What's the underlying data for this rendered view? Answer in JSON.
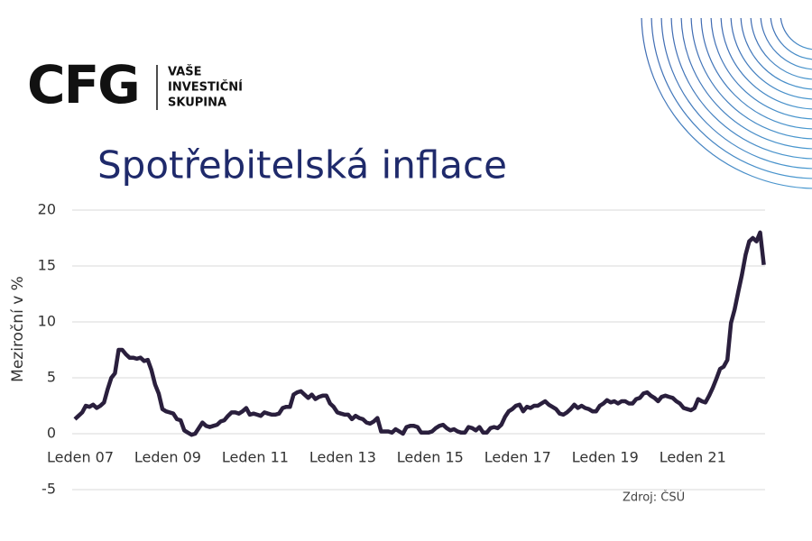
{
  "logo": {
    "mark": "CFG",
    "lines": [
      "VAŠE",
      "INVESTIČNÍ",
      "SKUPINA"
    ]
  },
  "chart_data": {
    "type": "line",
    "title": "Spotřebitelská inflace",
    "y_label": "Meziroční v %",
    "source": "Zdroj: ČSÚ",
    "categories": [
      "Leden 07",
      null,
      null,
      null,
      null,
      null,
      null,
      null,
      null,
      null,
      null,
      null,
      null,
      null,
      null,
      null,
      null,
      null,
      null,
      null,
      null,
      null,
      null,
      null,
      "Leden 09",
      null,
      null,
      null,
      null,
      null,
      null,
      null,
      null,
      null,
      null,
      null,
      null,
      null,
      null,
      null,
      null,
      null,
      null,
      null,
      null,
      null,
      null,
      null,
      "Leden 11",
      null,
      null,
      null,
      null,
      null,
      null,
      null,
      null,
      null,
      null,
      null,
      null,
      null,
      null,
      null,
      null,
      null,
      null,
      null,
      null,
      null,
      null,
      null,
      "Leden 13",
      null,
      null,
      null,
      null,
      null,
      null,
      null,
      null,
      null,
      null,
      null,
      null,
      null,
      null,
      null,
      null,
      null,
      null,
      null,
      null,
      null,
      null,
      null,
      "Leden 15",
      null,
      null,
      null,
      null,
      null,
      null,
      null,
      null,
      null,
      null,
      null,
      null,
      null,
      null,
      null,
      null,
      null,
      null,
      null,
      null,
      null,
      null,
      null,
      "Leden 17",
      null,
      null,
      null,
      null,
      null,
      null,
      null,
      null,
      null,
      null,
      null,
      null,
      null,
      null,
      null,
      null,
      null,
      null,
      null,
      null,
      null,
      null,
      null,
      "Leden 19",
      null,
      null,
      null,
      null,
      null,
      null,
      null,
      null,
      null,
      null,
      null,
      null,
      null,
      null,
      null,
      null,
      null,
      null,
      null,
      null,
      null,
      null,
      null,
      "Leden 21",
      null,
      null,
      null,
      null,
      null,
      null,
      null,
      null,
      null,
      null,
      null,
      null,
      null,
      null,
      null,
      null,
      null,
      null,
      null,
      null,
      null
    ],
    "series": [
      {
        "name": "Inflace",
        "color": "#2a1f3d",
        "values": [
          1.3,
          1.6,
          1.9,
          2.5,
          2.4,
          2.6,
          2.3,
          2.5,
          2.8,
          4.0,
          5.0,
          5.4,
          7.5,
          7.5,
          7.1,
          6.8,
          6.8,
          6.7,
          6.8,
          6.5,
          6.6,
          5.7,
          4.4,
          3.6,
          2.2,
          2.0,
          1.9,
          1.8,
          1.3,
          1.2,
          0.3,
          0.1,
          -0.1,
          0.0,
          0.5,
          1.0,
          0.7,
          0.6,
          0.7,
          0.8,
          1.1,
          1.2,
          1.6,
          1.9,
          1.9,
          1.8,
          2.0,
          2.3,
          1.7,
          1.8,
          1.7,
          1.6,
          1.9,
          1.8,
          1.7,
          1.7,
          1.8,
          2.3,
          2.4,
          2.4,
          3.5,
          3.7,
          3.8,
          3.5,
          3.2,
          3.5,
          3.1,
          3.3,
          3.4,
          3.4,
          2.7,
          2.4,
          1.9,
          1.8,
          1.7,
          1.7,
          1.3,
          1.6,
          1.4,
          1.3,
          1.0,
          0.9,
          1.1,
          1.4,
          0.2,
          0.2,
          0.2,
          0.1,
          0.4,
          0.2,
          0.0,
          0.6,
          0.7,
          0.7,
          0.6,
          0.1,
          0.1,
          0.1,
          0.2,
          0.5,
          0.7,
          0.8,
          0.5,
          0.3,
          0.4,
          0.2,
          0.1,
          0.1,
          0.6,
          0.5,
          0.3,
          0.6,
          0.1,
          0.1,
          0.5,
          0.6,
          0.5,
          0.8,
          1.5,
          2.0,
          2.2,
          2.5,
          2.6,
          2.0,
          2.4,
          2.3,
          2.5,
          2.5,
          2.7,
          2.9,
          2.6,
          2.4,
          2.2,
          1.8,
          1.7,
          1.9,
          2.2,
          2.6,
          2.3,
          2.5,
          2.3,
          2.2,
          2.0,
          2.0,
          2.5,
          2.7,
          3.0,
          2.8,
          2.9,
          2.7,
          2.9,
          2.9,
          2.7,
          2.7,
          3.1,
          3.2,
          3.6,
          3.7,
          3.4,
          3.2,
          2.9,
          3.3,
          3.4,
          3.3,
          3.2,
          2.9,
          2.7,
          2.3,
          2.2,
          2.1,
          2.3,
          3.1,
          2.9,
          2.8,
          3.4,
          4.1,
          4.9,
          5.8,
          6.0,
          6.6,
          9.9,
          11.1,
          12.7,
          14.2,
          16.0,
          17.2,
          17.5,
          17.2,
          18.0,
          15.1
        ]
      }
    ],
    "ylim": [
      -5,
      20
    ],
    "yticks": [
      -5,
      0,
      5,
      10,
      15,
      20
    ],
    "grid": true
  }
}
